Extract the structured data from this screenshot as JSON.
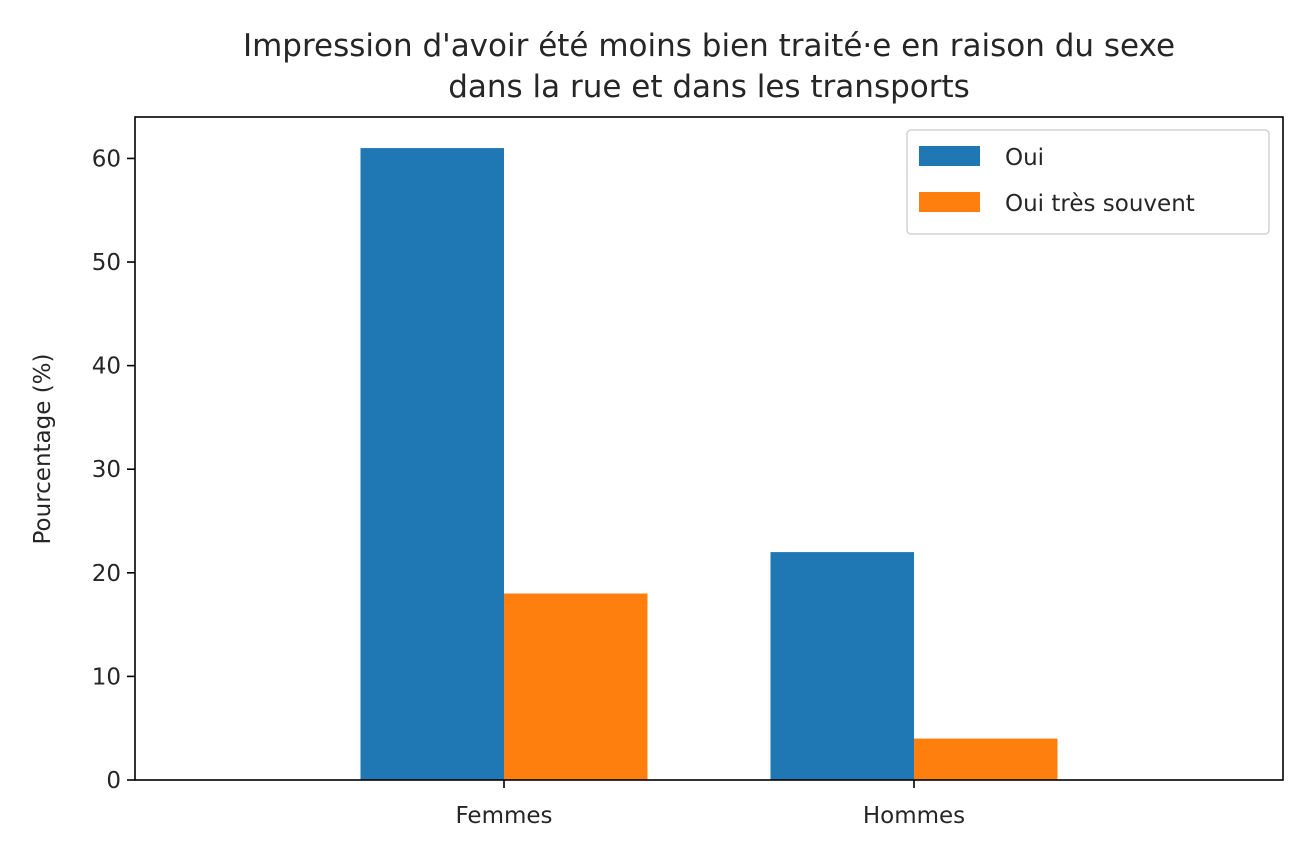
{
  "chart_data": {
    "type": "bar",
    "title": "Impression d'avoir été moins bien traité·e en raison du sexe",
    "subtitle": "dans la rue et dans les transports",
    "xlabel": "",
    "ylabel": "Pourcentage (%)",
    "categories": [
      "Femmes",
      "Hommes"
    ],
    "series": [
      {
        "name": "Oui",
        "values": [
          61,
          22
        ],
        "color": "#1f77b4"
      },
      {
        "name": "Oui très souvent",
        "values": [
          18,
          4
        ],
        "color": "#ff7f0e"
      }
    ],
    "ylim": [
      0,
      64
    ],
    "yticks": [
      "0",
      "10",
      "20",
      "30",
      "40",
      "50",
      "60"
    ],
    "grid": false,
    "legend_position": "top-right"
  }
}
